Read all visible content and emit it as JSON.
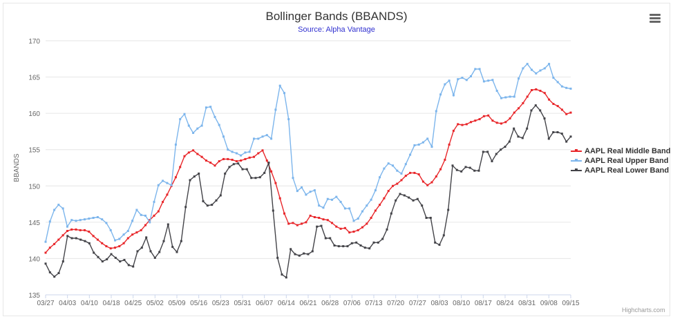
{
  "chart": {
    "title": "Bollinger Bands (BBANDS)",
    "subtitle": "Source: Alpha Vantage",
    "credits": "Highcharts.com",
    "menu_icon": "hamburger-icon"
  },
  "chart_data": {
    "type": "line",
    "title": "Bollinger Bands (BBANDS)",
    "subtitle": "Source: Alpha Vantage",
    "xlabel": "",
    "ylabel": "BBANDS",
    "ylim": [
      135,
      170
    ],
    "yticks": [
      135,
      140,
      145,
      150,
      155,
      160,
      165,
      170
    ],
    "grid": true,
    "legend_position": "right",
    "x_tick_labels": [
      "03/27",
      "04/03",
      "04/10",
      "04/18",
      "04/25",
      "05/02",
      "05/09",
      "05/16",
      "05/23",
      "05/31",
      "06/07",
      "06/14",
      "06/21",
      "06/28",
      "07/06",
      "07/13",
      "07/20",
      "07/27",
      "08/03",
      "08/10",
      "08/17",
      "08/24",
      "08/31",
      "09/08",
      "09/15"
    ],
    "series": [
      {
        "name": "AAPL Real Middle Band",
        "color": "#e8262a",
        "values": [
          140.8,
          141.5,
          142.0,
          142.6,
          143.2,
          143.8,
          144.0,
          144.0,
          143.9,
          143.9,
          143.7,
          143.1,
          142.6,
          142.1,
          141.7,
          141.4,
          141.5,
          141.7,
          142.1,
          142.8,
          143.3,
          143.6,
          143.9,
          144.6,
          145.3,
          145.9,
          146.5,
          147.8,
          148.8,
          150.0,
          151.2,
          152.6,
          154.1,
          154.6,
          154.9,
          154.4,
          154.0,
          153.5,
          153.2,
          152.8,
          153.4,
          153.7,
          153.7,
          153.6,
          153.4,
          153.5,
          153.7,
          153.9,
          154.0,
          154.5,
          154.9,
          153.5,
          152.0,
          150.4,
          148.3,
          146.2,
          144.8,
          144.9,
          144.6,
          144.8,
          145.0,
          145.9,
          145.7,
          145.6,
          145.4,
          145.3,
          144.9,
          144.4,
          144.1,
          144.2,
          143.6,
          143.7,
          143.9,
          144.3,
          144.8,
          145.6,
          146.6,
          147.4,
          148.3,
          149.3,
          150.0,
          150.3,
          150.8,
          151.4,
          151.8,
          151.8,
          151.6,
          150.6,
          150.1,
          150.5,
          151.3,
          152.3,
          153.6,
          155.7,
          157.6,
          158.5,
          158.4,
          158.5,
          158.8,
          159.0,
          159.2,
          159.6,
          159.7,
          159.0,
          158.7,
          158.6,
          158.8,
          159.3,
          160.1,
          160.7,
          161.4,
          162.3,
          163.2,
          163.3,
          163.1,
          162.8,
          161.9,
          161.3,
          161.0,
          160.5,
          159.9,
          160.1
        ]
      },
      {
        "name": "AAPL Real Upper Band",
        "color": "#7cb5ec",
        "values": [
          142.3,
          145.1,
          146.7,
          147.4,
          146.9,
          144.4,
          145.3,
          145.2,
          145.3,
          145.4,
          145.5,
          145.6,
          145.7,
          145.4,
          144.9,
          143.9,
          142.5,
          142.7,
          143.3,
          143.8,
          145.2,
          146.7,
          146.0,
          145.9,
          145.0,
          147.8,
          150.1,
          150.7,
          150.4,
          150.1,
          155.7,
          159.2,
          159.9,
          158.3,
          157.3,
          157.9,
          158.3,
          160.8,
          160.9,
          159.5,
          158.4,
          156.8,
          155.0,
          154.7,
          154.5,
          154.2,
          154.6,
          154.7,
          156.5,
          156.5,
          156.8,
          157.0,
          156.5,
          160.5,
          163.8,
          162.8,
          159.2,
          151.1,
          149.3,
          149.8,
          148.8,
          149.2,
          149.4,
          147.3,
          147.0,
          148.2,
          148.1,
          148.5,
          147.8,
          146.9,
          146.9,
          145.2,
          145.5,
          146.5,
          147.3,
          148.1,
          149.4,
          151.2,
          152.4,
          153.1,
          152.8,
          152.1,
          151.7,
          153.0,
          154.3,
          155.6,
          155.7,
          156.0,
          156.5,
          155.4,
          160.3,
          162.6,
          164.0,
          164.5,
          162.5,
          164.7,
          164.9,
          164.6,
          165.1,
          166.1,
          166.1,
          164.4,
          164.5,
          164.6,
          163.1,
          162.1,
          162.2,
          162.3,
          162.3,
          164.8,
          166.2,
          166.8,
          166.0,
          165.5,
          165.9,
          166.2,
          166.8,
          164.9,
          164.3,
          163.7,
          163.5,
          163.4
        ]
      },
      {
        "name": "AAPL Real Lower Band",
        "color": "#434348",
        "values": [
          139.3,
          138.1,
          137.5,
          138.0,
          139.6,
          143.1,
          142.8,
          142.8,
          142.6,
          142.4,
          142.1,
          140.8,
          140.2,
          139.6,
          139.9,
          140.6,
          140.1,
          139.6,
          139.8,
          139.1,
          138.9,
          141.0,
          141.5,
          142.9,
          141.0,
          140.1,
          140.9,
          142.4,
          144.7,
          141.6,
          140.9,
          142.4,
          147.1,
          150.8,
          151.3,
          151.7,
          147.9,
          147.3,
          147.4,
          148.0,
          148.7,
          151.7,
          152.6,
          153.0,
          153.1,
          152.3,
          152.3,
          151.1,
          151.1,
          151.2,
          151.8,
          153.2,
          146.6,
          140.1,
          137.8,
          137.4,
          141.3,
          140.6,
          140.4,
          140.7,
          140.6,
          141.0,
          144.4,
          144.5,
          142.8,
          142.8,
          141.8,
          141.7,
          141.7,
          141.7,
          142.1,
          142.2,
          141.8,
          141.5,
          141.4,
          142.2,
          142.2,
          142.7,
          144.0,
          146.2,
          148.0,
          148.9,
          148.7,
          148.4,
          148.0,
          148.2,
          147.3,
          145.6,
          145.6,
          142.2,
          141.9,
          143.2,
          146.7,
          152.8,
          152.2,
          152.0,
          152.6,
          152.5,
          152.1,
          152.1,
          154.7,
          154.7,
          153.4,
          154.4,
          155.0,
          155.4,
          156.1,
          157.9,
          156.8,
          156.6,
          157.9,
          160.4,
          161.1,
          160.4,
          159.3,
          156.5,
          157.4,
          157.4,
          157.2,
          156.1,
          156.8
        ]
      }
    ]
  }
}
